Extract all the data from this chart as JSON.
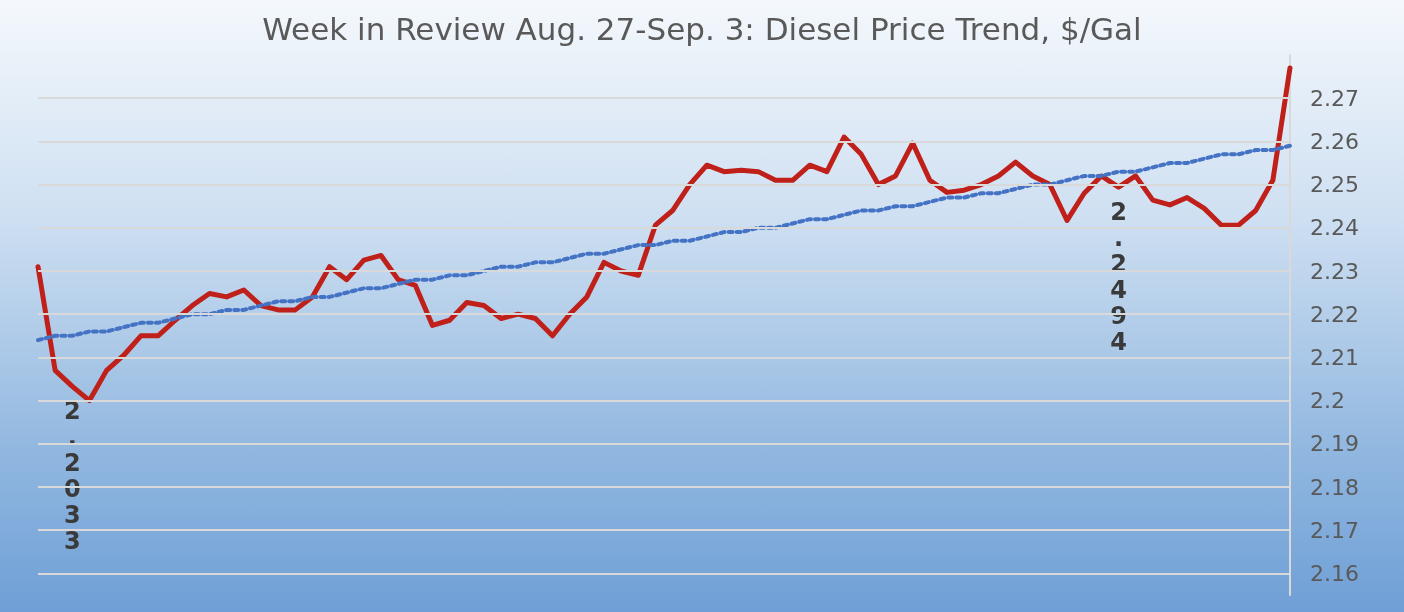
{
  "chart_data": {
    "type": "line",
    "title": "Week in Review Aug. 27-Sep. 3: Diesel Price Trend, $/Gal",
    "categories": [
      null,
      null,
      null,
      null,
      null,
      null,
      null,
      null,
      null,
      null,
      null,
      null,
      null,
      null,
      null,
      null,
      null,
      null,
      null,
      null,
      null,
      null,
      null,
      null,
      null,
      null,
      null,
      null,
      null,
      null,
      null,
      null,
      null,
      null,
      null,
      null,
      null,
      null,
      null,
      null,
      null,
      null,
      null,
      null,
      null,
      null,
      null,
      null,
      null,
      null,
      null,
      null,
      null,
      null,
      null,
      null,
      null,
      null,
      null,
      null,
      null,
      null,
      null,
      null,
      null,
      null,
      null,
      null,
      null,
      null,
      null,
      null,
      null,
      null
    ],
    "series": [
      {
        "color": "#c0201a",
        "line_style": "solid",
        "values": [
          2.231,
          2.207,
          2.2033,
          2.2,
          2.207,
          2.2105,
          2.215,
          2.215,
          2.2186,
          2.222,
          2.2248,
          2.224,
          2.2256,
          2.222,
          2.221,
          2.221,
          2.224,
          2.231,
          2.228,
          2.2325,
          2.2336,
          2.228,
          2.2267,
          2.2174,
          2.2186,
          2.2227,
          2.222,
          2.219,
          2.22,
          2.219,
          2.215,
          2.22,
          2.224,
          2.232,
          2.23,
          2.229,
          2.2406,
          2.244,
          2.25,
          2.2545,
          2.253,
          2.2533,
          2.253,
          2.251,
          2.251,
          2.2545,
          2.253,
          2.261,
          2.257,
          2.25,
          2.252,
          2.2596,
          2.251,
          2.2482,
          2.2487,
          2.25,
          2.252,
          2.2552,
          2.252,
          2.25,
          2.2417,
          2.248,
          2.252,
          2.2494,
          2.252,
          2.2464,
          2.2453,
          2.247,
          2.2445,
          2.2406,
          2.2406,
          2.244,
          2.251,
          2.277
        ],
        "value_labels": [
          null,
          null,
          "2.2033",
          null,
          null,
          null,
          null,
          null,
          null,
          null,
          null,
          null,
          null,
          null,
          null,
          null,
          null,
          null,
          null,
          null,
          null,
          null,
          null,
          null,
          null,
          null,
          null,
          null,
          null,
          null,
          null,
          null,
          null,
          null,
          null,
          null,
          null,
          null,
          null,
          null,
          null,
          null,
          null,
          null,
          null,
          null,
          null,
          null,
          null,
          null,
          null,
          null,
          null,
          null,
          null,
          null,
          null,
          null,
          null,
          null,
          null,
          null,
          null,
          "2.2494",
          null,
          null,
          null,
          null,
          null,
          null,
          null,
          null,
          null,
          null
        ]
      },
      {
        "color": "#4472c4",
        "line_style": "dotted",
        "values": [
          2.214,
          2.215,
          2.215,
          2.216,
          2.216,
          2.217,
          2.218,
          2.218,
          2.219,
          2.22,
          2.22,
          2.221,
          2.221,
          2.222,
          2.223,
          2.223,
          2.224,
          2.224,
          2.225,
          2.226,
          2.226,
          2.227,
          2.228,
          2.228,
          2.229,
          2.229,
          2.23,
          2.231,
          2.231,
          2.232,
          2.232,
          2.233,
          2.234,
          2.234,
          2.235,
          2.236,
          2.236,
          2.237,
          2.237,
          2.238,
          2.239,
          2.239,
          2.24,
          2.24,
          2.241,
          2.242,
          2.242,
          2.243,
          2.244,
          2.244,
          2.245,
          2.245,
          2.246,
          2.247,
          2.247,
          2.248,
          2.248,
          2.249,
          2.25,
          2.25,
          2.251,
          2.252,
          2.252,
          2.253,
          2.253,
          2.254,
          2.255,
          2.255,
          2.256,
          2.257,
          2.257,
          2.258,
          2.258,
          2.259
        ]
      }
    ],
    "ylim": [
      2.155,
      2.28
    ],
    "yticks": [
      2.16,
      2.17,
      2.18,
      2.19,
      2.2,
      2.21,
      2.22,
      2.23,
      2.24,
      2.25,
      2.26,
      2.27
    ],
    "tick_labels": "y",
    "grid": "y"
  }
}
